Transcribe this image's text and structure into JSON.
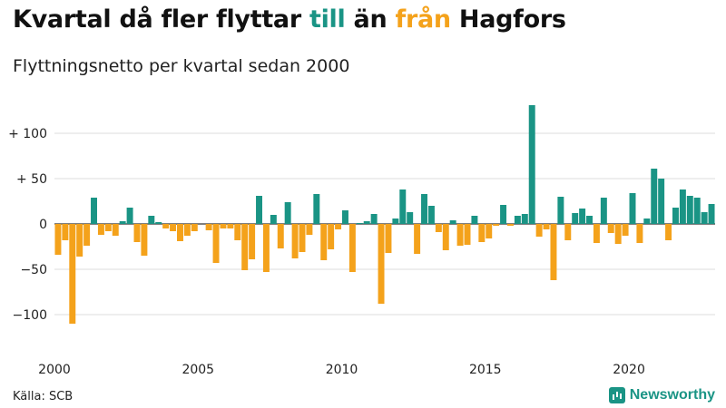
{
  "header": {
    "title_pre": "Kvartal då fler flyttar ",
    "title_pos": "till",
    "title_mid": " än ",
    "title_neg": "från",
    "title_post": " Hagfors",
    "subtitle": "Flyttningsnetto per kvartal sedan 2000"
  },
  "footer": {
    "source": "Källa: SCB",
    "brand": "Newsworthy"
  },
  "colors": {
    "positive": "#1a9485",
    "negative": "#f4a21b",
    "grid": "#dddddd",
    "axis": "#333333"
  },
  "chart_data": {
    "type": "bar",
    "ylim": [
      -140,
      140
    ],
    "yticks": [
      {
        "value": 100,
        "label": "+ 100"
      },
      {
        "value": 50,
        "label": "+  50"
      },
      {
        "value": 0,
        "label": "0"
      },
      {
        "value": -50,
        "label": "−50"
      },
      {
        "value": -100,
        "label": "−100"
      }
    ],
    "xticks": [
      {
        "index": 0,
        "label": "2000"
      },
      {
        "index": 20,
        "label": "2005"
      },
      {
        "index": 40,
        "label": "2010"
      },
      {
        "index": 60,
        "label": "2015"
      },
      {
        "index": 80,
        "label": "2020"
      }
    ],
    "start_year": 2000,
    "values": [
      -34,
      -18,
      -110,
      -36,
      -24,
      29,
      -12,
      -8,
      -13,
      3,
      18,
      -20,
      -35,
      9,
      2,
      -5,
      -8,
      -19,
      -13,
      -8,
      0,
      -7,
      -43,
      -5,
      -5,
      -18,
      -51,
      -39,
      31,
      -53,
      10,
      -27,
      24,
      -38,
      -31,
      -12,
      33,
      -40,
      -28,
      -6,
      15,
      -53,
      1,
      3,
      11,
      -88,
      -32,
      6,
      38,
      13,
      -33,
      33,
      20,
      -9,
      -29,
      4,
      -24,
      -23,
      9,
      -20,
      -16,
      -2,
      21,
      -2,
      9,
      11,
      131,
      -14,
      -6,
      -62,
      30,
      -18,
      12,
      17,
      9,
      -21,
      29,
      -10,
      -22,
      -13,
      34,
      -21,
      6,
      61,
      50,
      -18,
      18,
      38,
      31,
      29,
      13,
      22
    ]
  }
}
